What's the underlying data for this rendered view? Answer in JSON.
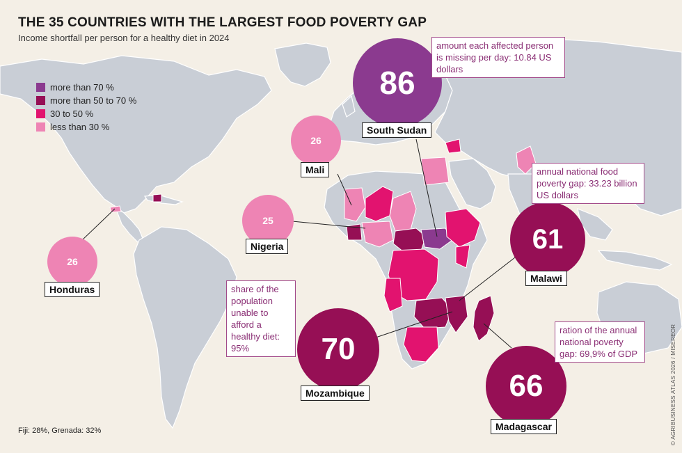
{
  "title": "THE 35 COUNTRIES WITH THE LARGEST FOOD POVERTY GAP",
  "subtitle": "Income shortfall per person for a healthy diet in 2024",
  "legend": [
    {
      "label": "more than 70 %",
      "color": "#8b3a8f"
    },
    {
      "label": "more than 50 to 70 %",
      "color": "#960f55"
    },
    {
      "label": "30 to 50 %",
      "color": "#e2136f"
    },
    {
      "label": "less than 30 %",
      "color": "#ee84b4"
    }
  ],
  "bubbles": {
    "south_sudan": {
      "value": "86",
      "label": "South Sudan",
      "color": "#8b3a8f"
    },
    "mali": {
      "value": "26",
      "label": "Mali",
      "color": "#ee84b4"
    },
    "nigeria": {
      "value": "25",
      "label": "Nigeria",
      "color": "#ee84b4"
    },
    "honduras": {
      "value": "26",
      "label": "Honduras",
      "color": "#ee84b4"
    },
    "malawi": {
      "value": "61",
      "label": "Malawi",
      "color": "#960f55"
    },
    "mozambique": {
      "value": "70",
      "label": "Mozambique",
      "color": "#960f55"
    },
    "madagascar": {
      "value": "66",
      "label": "Madagascar",
      "color": "#960f55"
    }
  },
  "notes": {
    "south_sudan": "amount each affected person is missing per day: 10.84 US dollars",
    "malawi": "annual national food poverty gap: 33.23 billion US dollars",
    "mozambique": "share of the population unable to afford a healthy diet: 95%",
    "madagascar": "ration of the annual national poverty gap: 69,9% of GDP"
  },
  "footnote": "Fiji: 28%, Grenada: 32%",
  "credit": "© AGRIBUSINESS ATLAS 2026 / MISEREOR",
  "colors": {
    "background": "#f4efe6",
    "land": "#c9ced6",
    "border": "#ffffff"
  }
}
